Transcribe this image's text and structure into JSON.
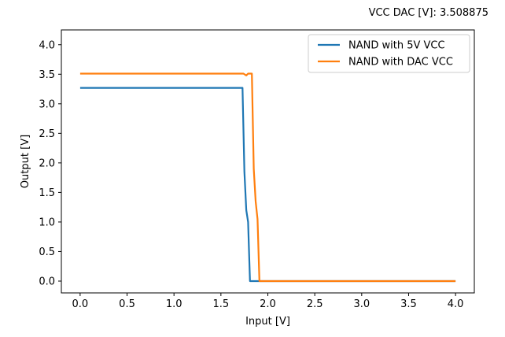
{
  "header_text": "VCC DAC [V]: 3.508875",
  "chart_data": {
    "type": "line",
    "xlabel": "Input [V]",
    "ylabel": "Output [V]",
    "xlim": [
      -0.2,
      4.2
    ],
    "ylim": [
      -0.2,
      4.25
    ],
    "xticks": [
      0.0,
      0.5,
      1.0,
      1.5,
      2.0,
      2.5,
      3.0,
      3.5,
      4.0
    ],
    "yticks": [
      0.0,
      0.5,
      1.0,
      1.5,
      2.0,
      2.5,
      3.0,
      3.5,
      4.0
    ],
    "xtick_labels": [
      "0.0",
      "0.5",
      "1.0",
      "1.5",
      "2.0",
      "2.5",
      "3.0",
      "3.5",
      "4.0"
    ],
    "ytick_labels": [
      "0.0",
      "0.5",
      "1.0",
      "1.5",
      "2.0",
      "2.5",
      "3.0",
      "3.5",
      "4.0"
    ],
    "grid": false,
    "legend_position": "top-right",
    "series": [
      {
        "name": "NAND with 5V VCC",
        "color": "#1f77b4",
        "x": [
          0.0,
          0.5,
          1.0,
          1.5,
          1.73,
          1.75,
          1.77,
          1.79,
          1.81,
          1.83,
          1.9,
          2.0,
          2.5,
          3.0,
          3.5,
          4.0
        ],
        "y": [
          3.27,
          3.27,
          3.27,
          3.27,
          3.27,
          1.85,
          1.2,
          1.0,
          0.0,
          0.0,
          0.0,
          0.0,
          0.0,
          0.0,
          0.0,
          0.0
        ]
      },
      {
        "name": "NAND with DAC VCC",
        "color": "#ff7f0e",
        "x": [
          0.0,
          0.5,
          1.0,
          1.5,
          1.74,
          1.77,
          1.79,
          1.81,
          1.83,
          1.85,
          1.87,
          1.89,
          1.91,
          2.0,
          2.5,
          3.0,
          3.5,
          4.0
        ],
        "y": [
          3.51,
          3.51,
          3.51,
          3.51,
          3.51,
          3.48,
          3.51,
          3.51,
          3.51,
          1.9,
          1.35,
          1.05,
          0.0,
          0.0,
          0.0,
          0.0,
          0.0,
          0.0
        ]
      }
    ]
  }
}
